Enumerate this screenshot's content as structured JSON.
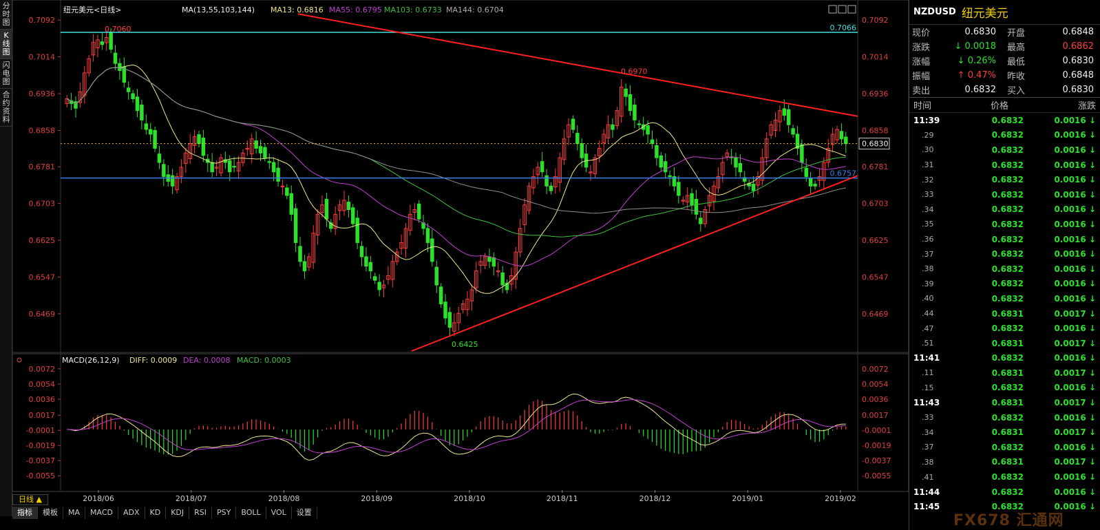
{
  "left_tabs": [
    "分时图",
    "K线图",
    "闪电图",
    "合约资料"
  ],
  "main_legend": {
    "name": "纽元美元<日线>",
    "ma_label": "MA(13,55,103,144)",
    "ma13": "MA13: 0.6816",
    "ma55": "MA55: 0.6795",
    "ma103": "MA103: 0.6733",
    "ma144": "MA144: 0.6704"
  },
  "macd_legend": {
    "label": "MACD(26,12,9)",
    "diff": "DIFF: 0.0009",
    "dea": "DEA: 0.0008",
    "macd": "MACD: 0.0003"
  },
  "period_label": "日线 ▲",
  "bottom_tabs": [
    "指标",
    "模板",
    "MA",
    "MACD",
    "ADX",
    "KD",
    "KDJ",
    "RSI",
    "PSY",
    "BOLL",
    "VOL",
    "设置"
  ],
  "quote": {
    "symbol": "NZDUSD",
    "name": "纽元美元",
    "rows": [
      {
        "l1": "现价",
        "v1": "0.6830",
        "c1": "w",
        "l2": "开盘",
        "v2": "0.6848",
        "c2": "w"
      },
      {
        "l1": "涨跌",
        "v1": "↓ 0.0018",
        "c1": "g",
        "l2": "最高",
        "v2": "0.6862",
        "c2": "r"
      },
      {
        "l1": "涨幅",
        "v1": "↓ 0.26%",
        "c1": "g",
        "l2": "最低",
        "v2": "0.6830",
        "c2": "w"
      },
      {
        "l1": "振幅",
        "v1": "↑ 0.47%",
        "c1": "r",
        "l2": "昨收",
        "v2": "0.6848",
        "c2": "w"
      },
      {
        "l1": "卖出",
        "v1": "0.6832",
        "c1": "w",
        "l2": "买入",
        "v2": "0.6830",
        "c2": "w"
      }
    ]
  },
  "ticks_header": [
    "时间",
    "价格",
    "涨跌"
  ],
  "ticks": [
    {
      "t": "11:39",
      "p": "0.6832",
      "c": "0.0016 ↓",
      "full": true
    },
    {
      "t": ".29",
      "p": "0.6832",
      "c": "0.0016 ↓"
    },
    {
      "t": ".30",
      "p": "0.6832",
      "c": "0.0016 ↓"
    },
    {
      "t": ".31",
      "p": "0.6832",
      "c": "0.0016 ↓"
    },
    {
      "t": ".32",
      "p": "0.6832",
      "c": "0.0016 ↓"
    },
    {
      "t": ".33",
      "p": "0.6832",
      "c": "0.0016 ↓"
    },
    {
      "t": ".34",
      "p": "0.6832",
      "c": "0.0016 ↓"
    },
    {
      "t": ".35",
      "p": "0.6832",
      "c": "0.0016 ↓"
    },
    {
      "t": ".36",
      "p": "0.6832",
      "c": "0.0016 ↓"
    },
    {
      "t": ".37",
      "p": "0.6832",
      "c": "0.0016 ↓"
    },
    {
      "t": ".38",
      "p": "0.6832",
      "c": "0.0016 ↓"
    },
    {
      "t": ".39",
      "p": "0.6832",
      "c": "0.0016 ↓"
    },
    {
      "t": ".40",
      "p": "0.6832",
      "c": "0.0016 ↓"
    },
    {
      "t": ".44",
      "p": "0.6831",
      "c": "0.0017 ↓"
    },
    {
      "t": ".47",
      "p": "0.6832",
      "c": "0.0016 ↓"
    },
    {
      "t": ".51",
      "p": "0.6831",
      "c": "0.0017 ↓"
    },
    {
      "t": "11:41",
      "p": "0.6832",
      "c": "0.0016 ↓",
      "full": true
    },
    {
      "t": ".11",
      "p": "0.6831",
      "c": "0.0017 ↓"
    },
    {
      "t": ".15",
      "p": "0.6832",
      "c": "0.0016 ↓"
    },
    {
      "t": "11:43",
      "p": "0.6831",
      "c": "0.0017 ↓",
      "full": true
    },
    {
      "t": ".33",
      "p": "0.6832",
      "c": "0.0016 ↓"
    },
    {
      "t": ".34",
      "p": "0.6831",
      "c": "0.0017 ↓"
    },
    {
      "t": ".37",
      "p": "0.6832",
      "c": "0.0016 ↓"
    },
    {
      "t": ".38",
      "p": "0.6831",
      "c": "0.0017 ↓"
    },
    {
      "t": ".41",
      "p": "0.6832",
      "c": "0.0016 ↓"
    },
    {
      "t": "11:44",
      "p": "0.6832",
      "c": "0.0016 ↓",
      "full": true
    },
    {
      "t": "11:45",
      "p": "0.6832",
      "c": "0.0016 ↓",
      "full": true
    }
  ],
  "watermark": "FX678 汇通网",
  "colors": {
    "up": "#ff3c3c",
    "down": "#2ce02c",
    "ma13": "#f0e68c",
    "ma55": "#c040d0",
    "ma103": "#40c040",
    "ma144": "#909090",
    "trend": "#ff2020",
    "support": "#3a7ff0",
    "resistance": "#40e0e0"
  },
  "chart_data": {
    "type": "candlestick",
    "price_axis_ticks": [
      0.7092,
      0.7014,
      0.6936,
      0.6858,
      0.6781,
      0.6703,
      0.6625,
      0.6547,
      0.6469
    ],
    "macd_axis_ticks": [
      0.0072,
      0.0054,
      0.0036,
      0.0017,
      -0.0001,
      -0.0019,
      -0.0037,
      -0.0055
    ],
    "x_labels": [
      "2018/06",
      "2018/07",
      "2018/08",
      "2018/09",
      "2018/10",
      "2018/11",
      "2018/12",
      "2019/01",
      "2019/02"
    ],
    "annotations": [
      {
        "text": "0.7060",
        "value": 0.706
      },
      {
        "text": "0.6970",
        "value": 0.697
      },
      {
        "text": "0.6425",
        "value": 0.6425
      }
    ],
    "hlines": [
      {
        "label": "0.7066",
        "value": 0.7066,
        "role": "resistance"
      },
      {
        "label": "0.6757",
        "value": 0.6757,
        "role": "support"
      }
    ],
    "current_price": {
      "label": "0.6830",
      "value": 0.683
    },
    "closes": [
      0.6925,
      0.6915,
      0.6905,
      0.694,
      0.698,
      0.701,
      0.7045,
      0.705,
      0.704,
      0.7055,
      0.703,
      0.7,
      0.6985,
      0.696,
      0.694,
      0.6925,
      0.69,
      0.688,
      0.686,
      0.685,
      0.682,
      0.679,
      0.676,
      0.675,
      0.674,
      0.676,
      0.678,
      0.681,
      0.683,
      0.6845,
      0.683,
      0.6805,
      0.679,
      0.677,
      0.678,
      0.68,
      0.679,
      0.677,
      0.678,
      0.679,
      0.681,
      0.682,
      0.684,
      0.682,
      0.681,
      0.68,
      0.679,
      0.677,
      0.675,
      0.674,
      0.672,
      0.668,
      0.662,
      0.658,
      0.656,
      0.659,
      0.664,
      0.668,
      0.67,
      0.667,
      0.665,
      0.668,
      0.67,
      0.671,
      0.669,
      0.666,
      0.662,
      0.659,
      0.657,
      0.656,
      0.654,
      0.652,
      0.653,
      0.655,
      0.658,
      0.66,
      0.662,
      0.665,
      0.668,
      0.669,
      0.667,
      0.665,
      0.662,
      0.658,
      0.653,
      0.649,
      0.646,
      0.644,
      0.645,
      0.647,
      0.649,
      0.65,
      0.652,
      0.656,
      0.658,
      0.659,
      0.658,
      0.657,
      0.656,
      0.653,
      0.652,
      0.655,
      0.66,
      0.665,
      0.67,
      0.674,
      0.676,
      0.678,
      0.677,
      0.674,
      0.673,
      0.676,
      0.68,
      0.684,
      0.687,
      0.686,
      0.683,
      0.68,
      0.678,
      0.677,
      0.68,
      0.682,
      0.685,
      0.687,
      0.686,
      0.69,
      0.695,
      0.693,
      0.69,
      0.688,
      0.687,
      0.686,
      0.685,
      0.683,
      0.68,
      0.678,
      0.677,
      0.676,
      0.674,
      0.672,
      0.671,
      0.672,
      0.67,
      0.668,
      0.666,
      0.669,
      0.672,
      0.674,
      0.676,
      0.679,
      0.681,
      0.68,
      0.678,
      0.677,
      0.675,
      0.674,
      0.673,
      0.676,
      0.68,
      0.684,
      0.687,
      0.688,
      0.69,
      0.689,
      0.687,
      0.685,
      0.682,
      0.679,
      0.676,
      0.674,
      0.674,
      0.676,
      0.679,
      0.682,
      0.685,
      0.686,
      0.684,
      0.683
    ]
  }
}
